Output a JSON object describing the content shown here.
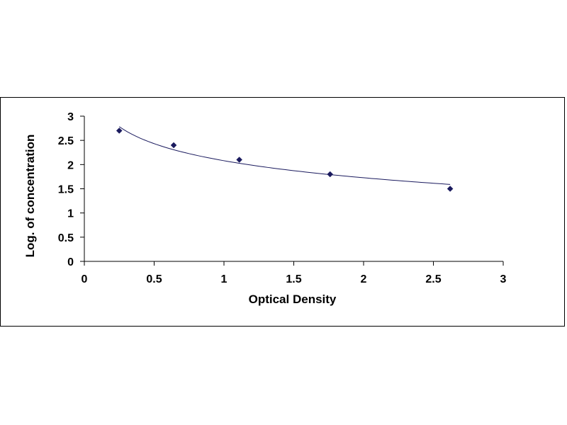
{
  "chart_data": {
    "type": "scatter",
    "title": "",
    "xlabel": "Optical Density",
    "ylabel": "Log. of concentration",
    "xlim": [
      0,
      3
    ],
    "ylim": [
      0,
      3
    ],
    "x_ticks": [
      "0",
      "0.5",
      "1",
      "1.5",
      "2",
      "2.5",
      "3"
    ],
    "y_ticks": [
      "0",
      "0.5",
      "1",
      "1.5",
      "2",
      "2.5",
      "3"
    ],
    "grid": false,
    "legend": "none",
    "series": [
      {
        "x": [
          0.25,
          0.64,
          1.11,
          1.76,
          2.62
        ],
        "y": [
          2.7,
          2.4,
          2.1,
          1.8,
          1.5
        ],
        "marker": "diamond",
        "color": "#1a1a5e",
        "line": "smooth-fit"
      }
    ]
  }
}
